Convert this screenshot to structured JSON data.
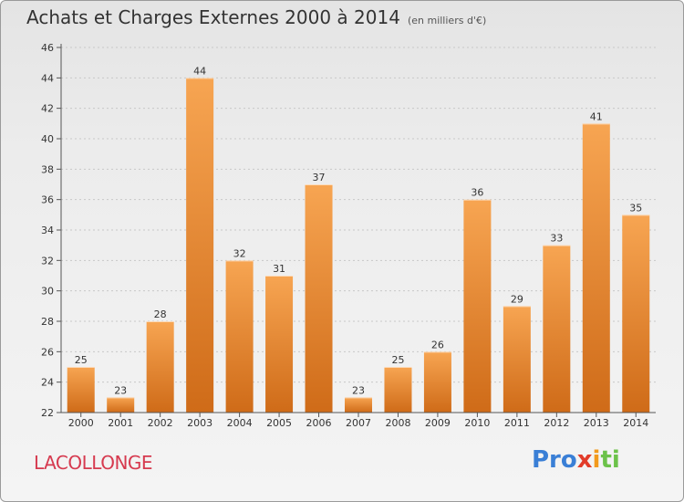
{
  "header": {
    "title": "Achats et Charges Externes 2000 à 2014",
    "subtitle": "(en milliers d'€)"
  },
  "commune": "LACOLLONGE",
  "logo": {
    "parts": [
      {
        "text": "Pro",
        "color": "#3a7fd6"
      },
      {
        "text": "x",
        "color": "#e23c2a"
      },
      {
        "text": "i",
        "color": "#f29a1d"
      },
      {
        "text": "ti",
        "color": "#6cc24a"
      }
    ]
  },
  "colors": {
    "bar_top": "#f7a552",
    "bar_bottom": "#cf6b18",
    "axis": "#555555",
    "grid": "#c8c8c8"
  },
  "chart_data": {
    "type": "bar",
    "title": "Achats et Charges Externes 2000 à 2014",
    "subtitle": "(en milliers d'€)",
    "categories": [
      "2000",
      "2001",
      "2002",
      "2003",
      "2004",
      "2005",
      "2006",
      "2007",
      "2008",
      "2009",
      "2010",
      "2011",
      "2012",
      "2013",
      "2014"
    ],
    "values": [
      25,
      23,
      28,
      44,
      32,
      31,
      37,
      23,
      25,
      26,
      36,
      29,
      33,
      41,
      35
    ],
    "ylim": [
      22,
      46
    ],
    "yticks": [
      22,
      24,
      26,
      28,
      30,
      32,
      34,
      36,
      38,
      40,
      42,
      44,
      46
    ],
    "grid": "horizontal dashed",
    "data_labels": true
  }
}
